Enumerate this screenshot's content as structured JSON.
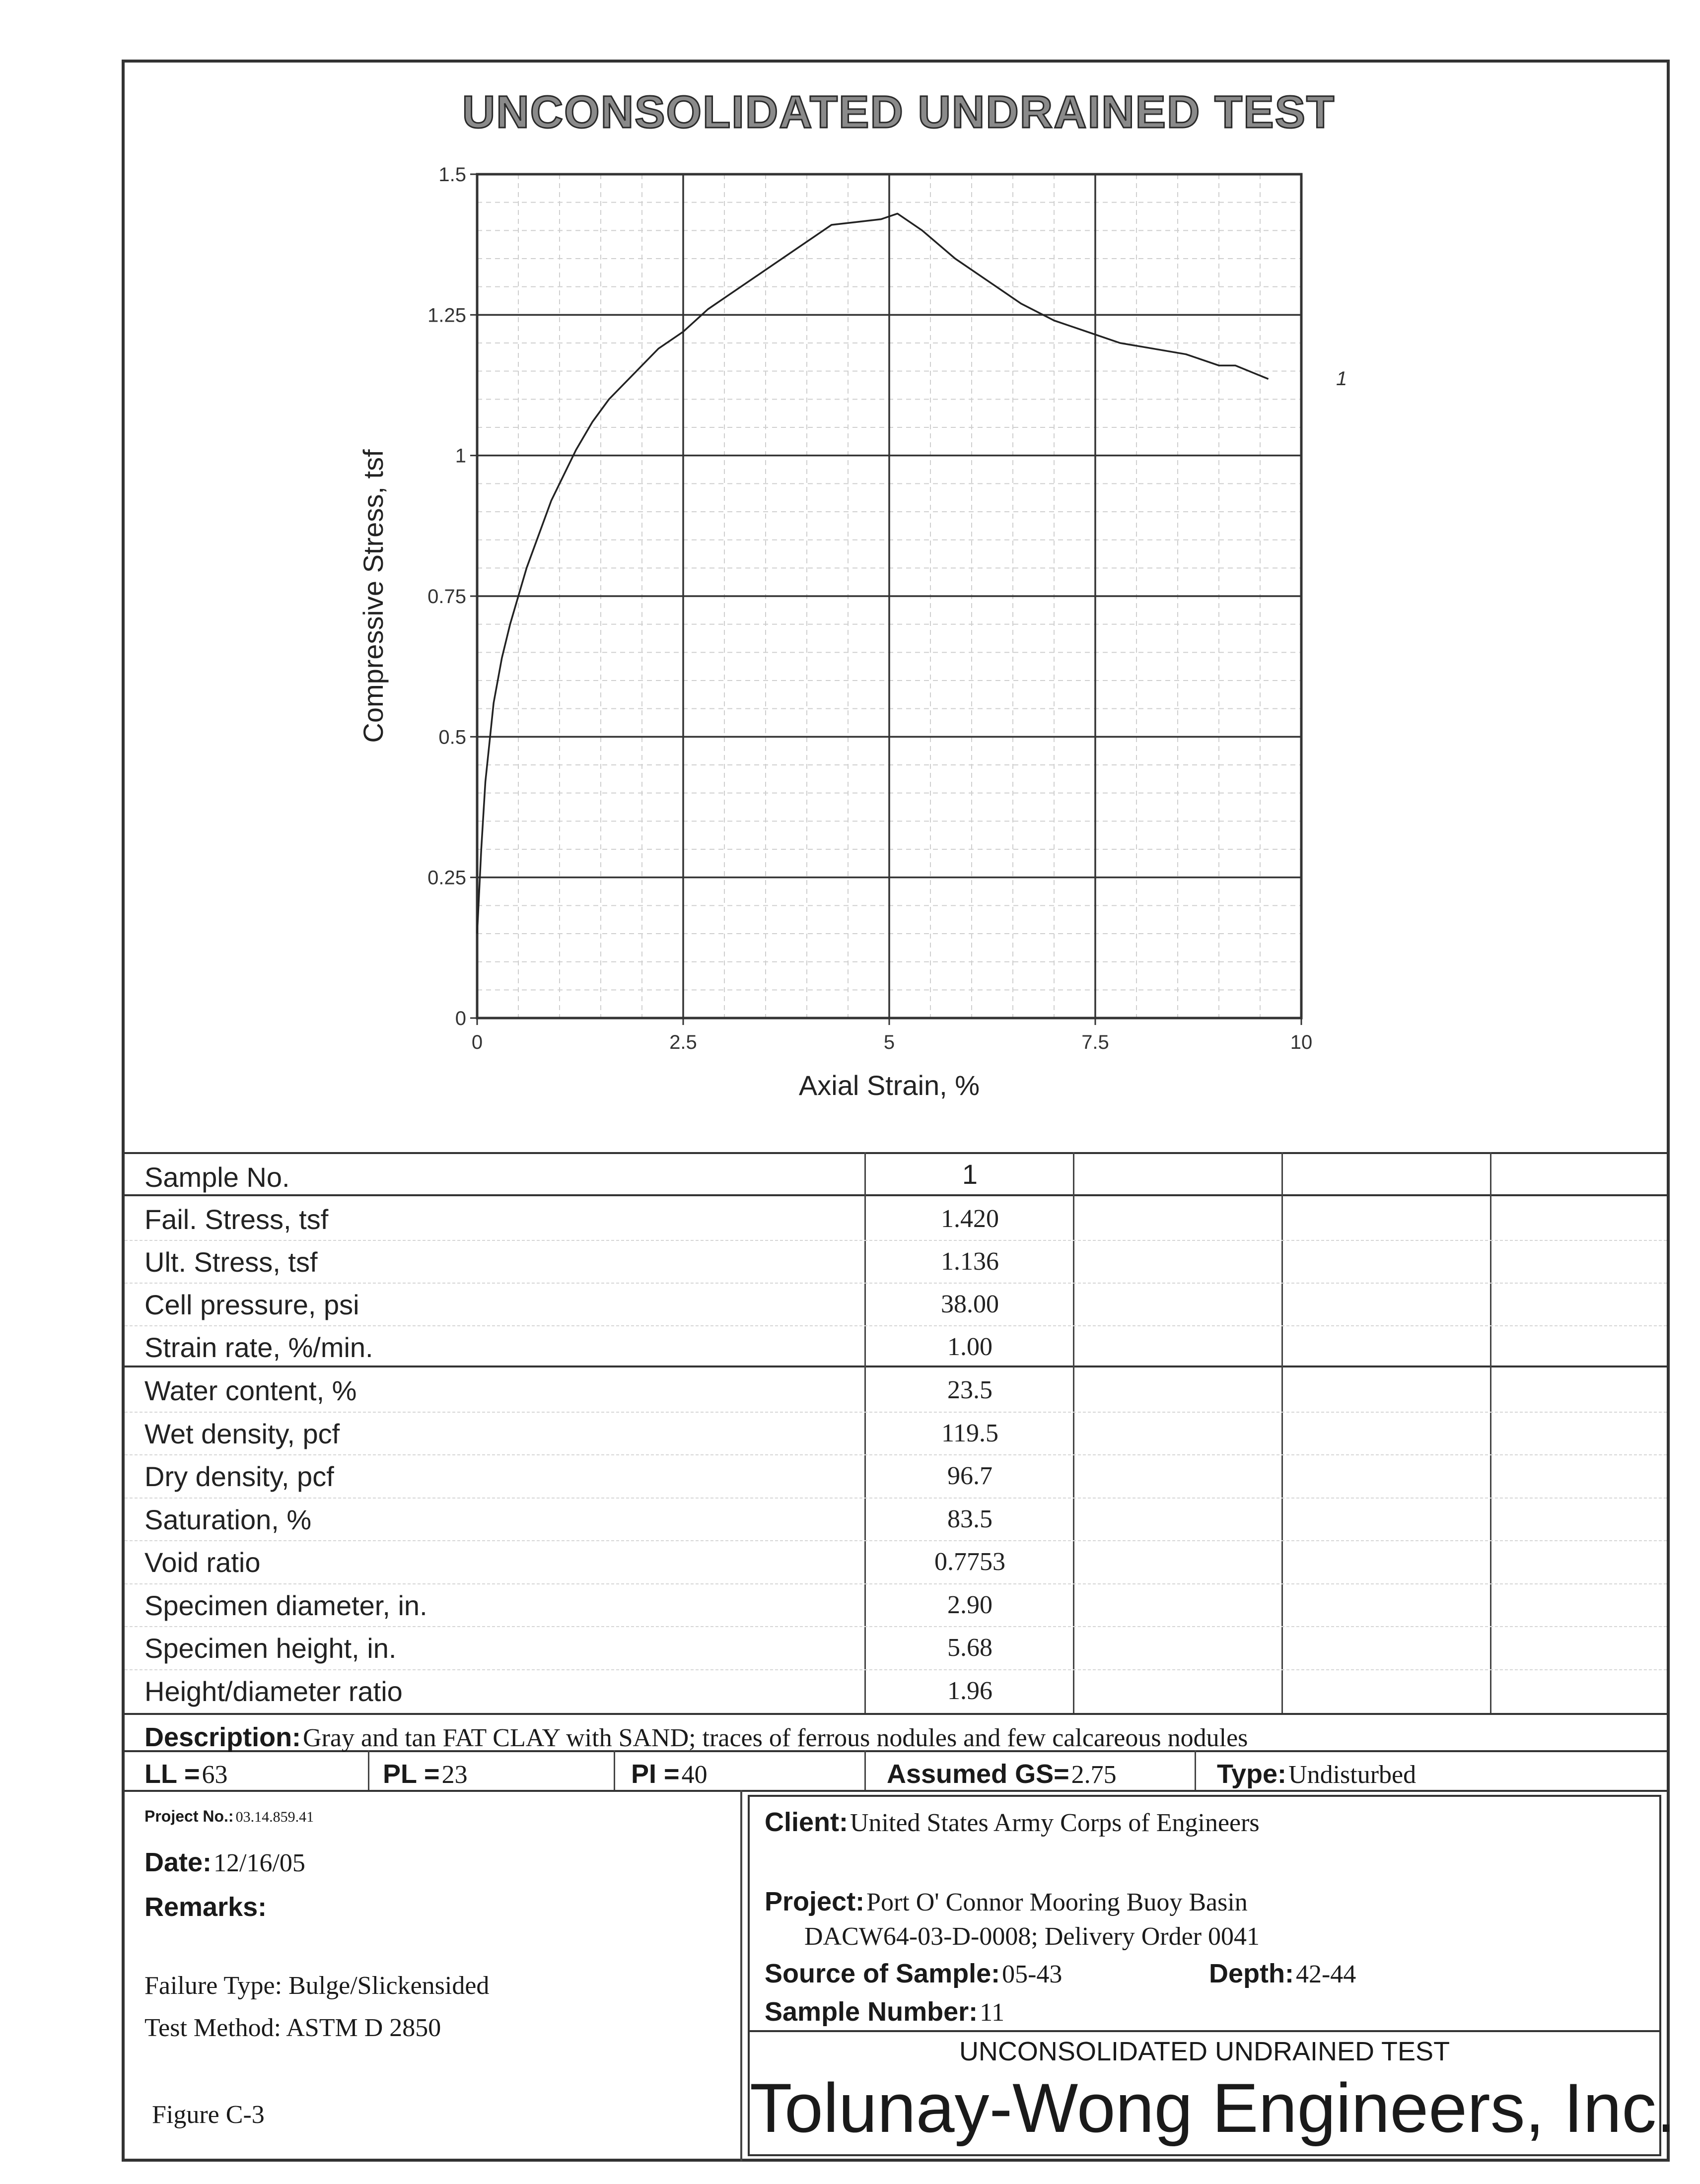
{
  "title": "UNCONSOLIDATED UNDRAINED TEST",
  "chart_data": {
    "type": "line",
    "title": "UNCONSOLIDATED UNDRAINED TEST",
    "xlabel": "Axial Strain, %",
    "ylabel": "Compressive Stress, tsf",
    "xlim": [
      0,
      10
    ],
    "ylim": [
      0,
      1.5
    ],
    "xticks": [
      "0",
      "2.5",
      "5",
      "7.5",
      "10"
    ],
    "yticks": [
      "0",
      "0.25",
      "0.5",
      "0.75",
      "1",
      "1.25",
      "1.5"
    ],
    "grid": true,
    "series": [
      {
        "name": "1",
        "x": [
          0,
          0.05,
          0.1,
          0.2,
          0.3,
          0.4,
          0.5,
          0.6,
          0.7,
          0.8,
          0.9,
          1.0,
          1.2,
          1.4,
          1.6,
          1.8,
          2.0,
          2.2,
          2.5,
          2.8,
          3.0,
          3.3,
          3.6,
          3.9,
          4.1,
          4.3,
          4.6,
          4.9,
          5.1,
          5.4,
          5.8,
          6.2,
          6.6,
          7.0,
          7.4,
          7.8,
          8.2,
          8.6,
          9.0,
          9.2,
          9.6
        ],
        "y": [
          0.15,
          0.3,
          0.42,
          0.56,
          0.64,
          0.7,
          0.75,
          0.8,
          0.84,
          0.88,
          0.92,
          0.95,
          1.01,
          1.06,
          1.1,
          1.13,
          1.16,
          1.19,
          1.22,
          1.26,
          1.28,
          1.31,
          1.34,
          1.37,
          1.39,
          1.41,
          1.415,
          1.42,
          1.43,
          1.4,
          1.35,
          1.31,
          1.27,
          1.24,
          1.22,
          1.2,
          1.19,
          1.18,
          1.16,
          1.16,
          1.136
        ]
      }
    ],
    "annotations": [
      "1"
    ]
  },
  "table": {
    "header_label": "Sample No.",
    "sample_numbers": [
      "1",
      "",
      "",
      ""
    ],
    "group1": [
      {
        "label": "Fail. Stress, tsf",
        "value": "1.420"
      },
      {
        "label": "Ult. Stress, tsf",
        "value": "1.136"
      },
      {
        "label": "Cell pressure, psi",
        "value": "38.00"
      },
      {
        "label": "Strain rate, %/min.",
        "value": "1.00"
      }
    ],
    "group2": [
      {
        "label": "Water content, %",
        "value": "23.5"
      },
      {
        "label": "Wet density, pcf",
        "value": "119.5"
      },
      {
        "label": "Dry density, pcf",
        "value": "96.7"
      },
      {
        "label": "Saturation, %",
        "value": "83.5"
      },
      {
        "label": "Void ratio",
        "value": "0.7753"
      },
      {
        "label": "Specimen diameter, in.",
        "value": "2.90"
      },
      {
        "label": "Specimen height, in.",
        "value": "5.68"
      },
      {
        "label": "Height/diameter ratio",
        "value": "1.96"
      }
    ]
  },
  "description": {
    "label": "Description:",
    "text": "Gray and tan FAT CLAY with SAND; traces of ferrous nodules and few calcareous nodules"
  },
  "limits": {
    "ll_label": "LL =",
    "ll": "63",
    "pl_label": "PL =",
    "pl": "23",
    "pi_label": "PI =",
    "pi": "40",
    "gs_label": "Assumed GS=",
    "gs": "2.75",
    "type_label": "Type:",
    "type": "Undisturbed"
  },
  "project_info": {
    "project_no_label": "Project No.:",
    "project_no": "03.14.859.41",
    "date_label": "Date:",
    "date": "12/16/05",
    "remarks_label": "Remarks:",
    "remark_lines": [
      "Failure Type: Bulge/Slickensided",
      "Test Method: ASTM D 2850"
    ],
    "figure": "Figure C-3"
  },
  "client_info": {
    "client_label": "Client:",
    "client": "United States Army Corps of Engineers",
    "project_label": "Project:",
    "project": "Port O' Connor Mooring Buoy Basin",
    "project_line2": "DACW64-03-D-0008; Delivery Order 0041",
    "source_label": "Source of Sample:",
    "source": "05-43",
    "depth_label": "Depth:",
    "depth": "42-44",
    "sample_number_label": "Sample Number:",
    "sample_number": "11",
    "test_title": "UNCONSOLIDATED UNDRAINED TEST",
    "company": "Tolunay-Wong Engineers, Inc."
  }
}
